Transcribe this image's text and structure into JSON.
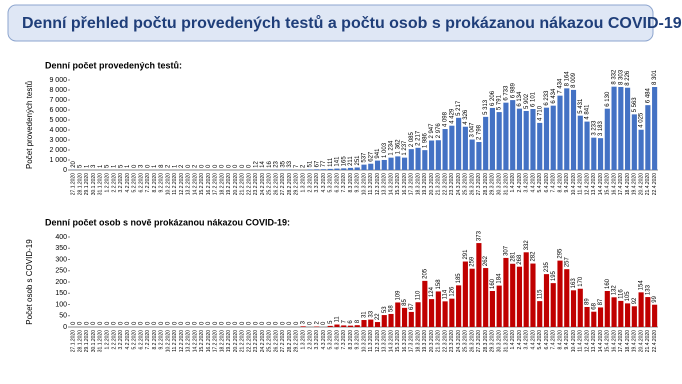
{
  "header": {
    "title": "Denní přehled počtu provedených testů a počtu osob s prokázanou nákazou COVID-19"
  },
  "chart_data": [
    {
      "type": "bar",
      "title": "Denní počet provedených testů:",
      "y_label": "Počet provedených testů",
      "color": "#4472c4",
      "categories": [
        "27.1.2020",
        "28.1.2020",
        "29.1.2020",
        "30.1.2020",
        "31.1.2020",
        "1.2.2020",
        "2.2.2020",
        "3.2.2020",
        "4.2.2020",
        "5.2.2020",
        "6.2.2020",
        "7.2.2020",
        "8.2.2020",
        "9.2.2020",
        "10.2.2020",
        "11.2.2020",
        "12.2.2020",
        "13.2.2020",
        "14.2.2020",
        "15.2.2020",
        "16.2.2020",
        "17.2.2020",
        "18.2.2020",
        "19.2.2020",
        "20.2.2020",
        "21.2.2020",
        "22.2.2020",
        "23.2.2020",
        "24.2.2020",
        "25.2.2020",
        "26.2.2020",
        "27.2.2020",
        "28.2.2020",
        "29.2.2020",
        "1.3.2020",
        "2.3.2020",
        "3.3.2020",
        "4.3.2020",
        "5.3.2020",
        "6.3.2020",
        "7.3.2020",
        "8.3.2020",
        "9.3.2020",
        "10.3.2020",
        "11.3.2020",
        "12.3.2020",
        "13.3.2020",
        "14.3.2020",
        "15.3.2020",
        "16.3.2020",
        "17.3.2020",
        "18.3.2020",
        "19.3.2020",
        "20.3.2020",
        "21.3.2020",
        "22.3.2020",
        "23.3.2020",
        "24.3.2020",
        "25.3.2020",
        "26.3.2020",
        "27.3.2020",
        "28.3.2020",
        "29.3.2020",
        "30.3.2020",
        "31.3.2020",
        "1.4.2020",
        "2.4.2020",
        "3.4.2020",
        "4.4.2020",
        "5.4.2020",
        "6.4.2020",
        "7.4.2020",
        "8.4.2020",
        "9.4.2020",
        "10.4.2020",
        "11.4.2020",
        "12.4.2020",
        "13.4.2020",
        "14.4.2020",
        "15.4.2020",
        "16.4.2020",
        "17.4.2020",
        "18.4.2020",
        "19.4.2020",
        "20.4.2020",
        "21.4.2020",
        "22.4.2020"
      ],
      "values": [
        20,
        5,
        1,
        3,
        1,
        5,
        1,
        5,
        1,
        0,
        3,
        0,
        1,
        8,
        2,
        1,
        2,
        0,
        2,
        0,
        0,
        0,
        0,
        0,
        0,
        0,
        0,
        12,
        14,
        16,
        23,
        35,
        33,
        7,
        2,
        51,
        67,
        77,
        111,
        141,
        165,
        211,
        251,
        537,
        627,
        941,
        1003,
        1234,
        1362,
        1237,
        2085,
        2217,
        1986,
        2947,
        2976,
        4098,
        4429,
        5217,
        4326,
        3047,
        2798,
        5313,
        6206,
        5791,
        6733,
        6989,
        6134,
        5902,
        6101,
        4710,
        6233,
        6434,
        7434,
        8164,
        8009,
        5431,
        4841,
        3233,
        3183,
        6130,
        8332,
        8303,
        8226,
        5563,
        4025,
        6484,
        8301
      ],
      "value_labels": [
        "20",
        "5",
        "1",
        "3",
        "1",
        "5",
        "1",
        "5",
        "1",
        "0",
        "3",
        "0",
        "1",
        "8",
        "2",
        "1",
        "2",
        "0",
        "2",
        "0",
        "0",
        "0",
        "0",
        "0",
        "0",
        "0",
        "0",
        "12",
        "14",
        "16",
        "23",
        "35",
        "33",
        "7",
        "2",
        "51",
        "67",
        "77",
        "111",
        "141",
        "165",
        "211",
        "251",
        "537",
        "627",
        "941",
        "1 003",
        "1 234",
        "1 362",
        "1 237",
        "2 085",
        "2 217",
        "1 986",
        "2 947",
        "2 976",
        "4 098",
        "4 429",
        "5 217",
        "4 326",
        "3 047",
        "2 798",
        "5 313",
        "6 206",
        "5 791",
        "6 733",
        "6 989",
        "6 134",
        "5 902",
        "6 101",
        "4 710",
        "6 233",
        "6 434",
        "7 434",
        "8 164",
        "8 009",
        "5 431",
        "4 841",
        "3 233",
        "3 183",
        "6 130",
        "8 332",
        "8 303",
        "8 226",
        "5 563",
        "4 025",
        "6 484",
        "8 301"
      ],
      "ylim": [
        0,
        9000
      ],
      "yticks": [
        0,
        {
          "value": 1000,
          "label": "1 000"
        },
        {
          "value": 2000,
          "label": "2 000"
        },
        {
          "value": 3000,
          "label": "3 000"
        },
        {
          "value": 4000,
          "label": "4 000"
        },
        {
          "value": 5000,
          "label": "5 000"
        },
        {
          "value": 6000,
          "label": "6 000"
        },
        {
          "value": 7000,
          "label": "7 000"
        },
        {
          "value": 8000,
          "label": "8 000"
        },
        {
          "value": 9000,
          "label": "9 000"
        }
      ]
    },
    {
      "type": "bar",
      "title": "Denní počet osob s nově prokázanou nákazou COVID-19:",
      "y_label": "Počet osob s COVID-19",
      "color": "#c00000",
      "categories": [
        "27.1.2020",
        "28.1.2020",
        "29.1.2020",
        "30.1.2020",
        "31.1.2020",
        "1.2.2020",
        "2.2.2020",
        "3.2.2020",
        "4.2.2020",
        "5.2.2020",
        "6.2.2020",
        "7.2.2020",
        "8.2.2020",
        "9.2.2020",
        "10.2.2020",
        "11.2.2020",
        "12.2.2020",
        "13.2.2020",
        "14.2.2020",
        "15.2.2020",
        "16.2.2020",
        "17.2.2020",
        "18.2.2020",
        "19.2.2020",
        "20.2.2020",
        "21.2.2020",
        "22.2.2020",
        "23.2.2020",
        "24.2.2020",
        "25.2.2020",
        "26.2.2020",
        "27.2.2020",
        "28.2.2020",
        "29.2.2020",
        "1.3.2020",
        "2.3.2020",
        "3.3.2020",
        "4.3.2020",
        "5.3.2020",
        "6.3.2020",
        "7.3.2020",
        "8.3.2020",
        "9.3.2020",
        "10.3.2020",
        "11.3.2020",
        "12.3.2020",
        "13.3.2020",
        "14.3.2020",
        "15.3.2020",
        "16.3.2020",
        "17.3.2020",
        "18.3.2020",
        "19.3.2020",
        "20.3.2020",
        "21.3.2020",
        "22.3.2020",
        "23.3.2020",
        "24.3.2020",
        "25.3.2020",
        "26.3.2020",
        "27.3.2020",
        "28.3.2020",
        "29.3.2020",
        "30.3.2020",
        "31.3.2020",
        "1.4.2020",
        "2.4.2020",
        "3.4.2020",
        "4.4.2020",
        "5.4.2020",
        "6.4.2020",
        "7.4.2020",
        "8.4.2020",
        "9.4.2020",
        "10.4.2020",
        "11.4.2020",
        "12.4.2020",
        "13.4.2020",
        "14.4.2020",
        "15.4.2020",
        "16.4.2020",
        "17.4.2020",
        "18.4.2020",
        "19.4.2020",
        "20.4.2020",
        "21.4.2020",
        "22.4.2020"
      ],
      "values": [
        0,
        0,
        0,
        0,
        0,
        0,
        0,
        0,
        0,
        0,
        0,
        0,
        0,
        0,
        0,
        0,
        0,
        0,
        0,
        0,
        0,
        0,
        0,
        0,
        0,
        0,
        0,
        0,
        0,
        0,
        0,
        0,
        0,
        0,
        3,
        0,
        2,
        0,
        5,
        11,
        7,
        6,
        8,
        31,
        33,
        22,
        53,
        58,
        109,
        85,
        67,
        110,
        205,
        124,
        158,
        114,
        126,
        185,
        291,
        259,
        373,
        262,
        160,
        184,
        307,
        281,
        268,
        332,
        282,
        115,
        235,
        195,
        295,
        257,
        163,
        170,
        89,
        68,
        87,
        160,
        132,
        116,
        105,
        92,
        154,
        133,
        99
      ],
      "ylim": [
        0,
        400
      ],
      "yticks": [
        0,
        50,
        100,
        150,
        200,
        250,
        300,
        350,
        400
      ]
    }
  ]
}
